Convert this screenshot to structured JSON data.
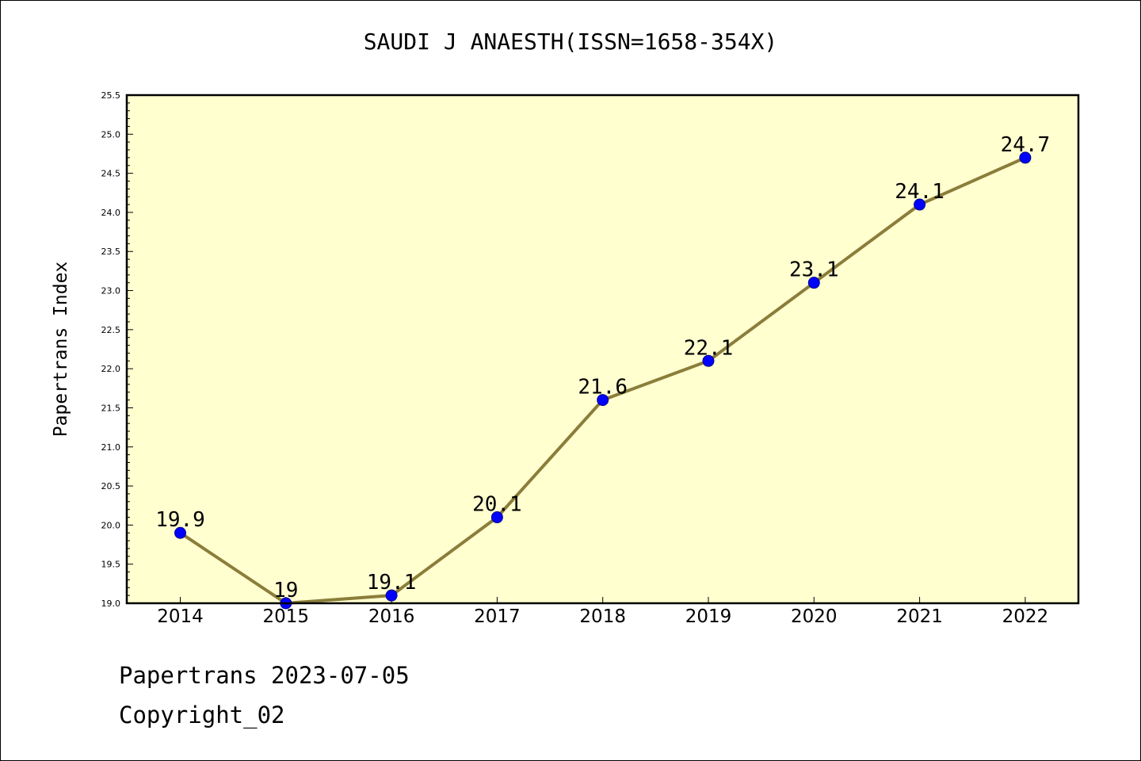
{
  "chart_data": {
    "type": "line",
    "title": "SAUDI J ANAESTH(ISSN=1658-354X)",
    "xlabel": "",
    "ylabel": "Papertrans Index",
    "categories": [
      "2014",
      "2015",
      "2016",
      "2017",
      "2018",
      "2019",
      "2020",
      "2021",
      "2022"
    ],
    "series": [
      {
        "values": [
          19.9,
          19.0,
          19.1,
          20.1,
          21.6,
          22.1,
          23.1,
          24.1,
          24.7
        ],
        "labels": [
          "19.9",
          "19",
          "19.1",
          "20.1",
          "21.6",
          "22.1",
          "23.1",
          "24.1",
          "24.7"
        ]
      }
    ],
    "ylim": [
      19.0,
      25.5
    ],
    "yticks": [
      "19.0",
      "19.5",
      "20.0",
      "20.5",
      "21.0",
      "21.5",
      "22.0",
      "22.5",
      "23.0",
      "23.5",
      "24.0",
      "24.5",
      "25.0",
      "25.5"
    ],
    "grid": false,
    "legend": "none",
    "colors": {
      "plot_background": "#ffffd0",
      "line": "#8b7d3a",
      "marker": "#0000ff",
      "axis": "#000000"
    }
  },
  "footer": {
    "date_line": "Papertrans 2023-07-05",
    "copyright_line": "Copyright_02"
  }
}
